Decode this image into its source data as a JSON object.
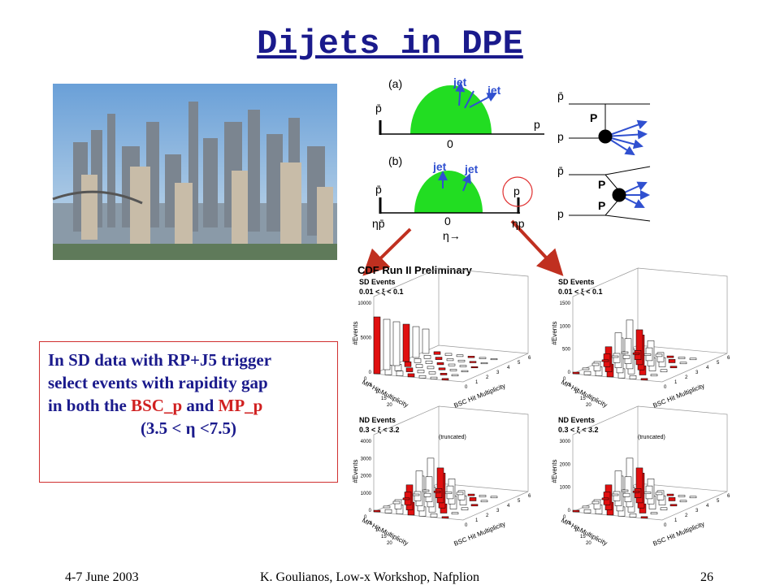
{
  "title": "Dijets in DPE",
  "text_box": {
    "lines": [
      [
        "In SD data with RP+J5 trigger"
      ],
      [
        "select events with rapidity gap"
      ],
      [
        "in both the ",
        "BSC_p",
        " and ",
        "MP_p"
      ],
      [
        "(3.5 < η <7.5)"
      ]
    ]
  },
  "diagram": {
    "a": {
      "label": "(a)",
      "jet1": "jet",
      "jet2": "jet",
      "pbar": "p̄",
      "p": "p",
      "zero": "0"
    },
    "b": {
      "label": "(b)",
      "jet1": "jet",
      "jet2": "jet",
      "pbar": "p̄",
      "p": "p",
      "zero": "0",
      "eta_pbar": "ηp̄",
      "eta": "η→",
      "eta_p": "ηp"
    },
    "feynman_a": {
      "pbar": "p̄",
      "p": "p",
      "pomeron": "P"
    },
    "feynman_b": {
      "pbar": "p̄",
      "p": "p",
      "pomeron1": "P",
      "pomeron2": "P"
    }
  },
  "plots_header": "CDF Run II Preliminary",
  "plots": [
    {
      "title": "SD Events",
      "cut": "0.01 < ξ < 0.1",
      "y_label": "#Events",
      "y_ticks": [
        "0",
        "5000",
        "10000"
      ],
      "x_ticks": [
        "0",
        "5",
        "10",
        "15",
        "20"
      ],
      "z_ticks": [
        "0",
        "1",
        "2",
        "3",
        "4",
        "5",
        "6"
      ],
      "x_label": "MP Hit Multiplicity",
      "z_label": "BSC Hit Multiplicity"
    },
    {
      "title": "SD Events",
      "cut": "0.01 < ξ < 0.1",
      "y_label": "#Events",
      "y_ticks": [
        "0",
        "500",
        "1000",
        "1500"
      ],
      "x_ticks": [
        "0",
        "5",
        "10",
        "15",
        "20"
      ],
      "z_ticks": [
        "0",
        "1",
        "2",
        "3",
        "4",
        "5",
        "6"
      ],
      "x_label": "MP Hit Multiplicity",
      "z_label": "BSC Hit Multiplicity"
    },
    {
      "title": "ND Events",
      "cut": "0.3 < ξ < 3.2",
      "note": "(truncated)",
      "y_label": "#Events",
      "y_ticks": [
        "0",
        "1000",
        "2000",
        "3000",
        "4000"
      ],
      "x_ticks": [
        "0",
        "5",
        "10",
        "15",
        "20"
      ],
      "z_ticks": [
        "0",
        "1",
        "2",
        "3",
        "4",
        "5",
        "6"
      ],
      "x_label": "MP Hit Multiplicity",
      "z_label": "BSC Hit Multiplicity"
    },
    {
      "title": "ND Events",
      "cut": "0.3 < ξ < 3.2",
      "note": "(truncated)",
      "y_label": "#Events",
      "y_ticks": [
        "0",
        "1000",
        "2000",
        "3000"
      ],
      "x_ticks": [
        "0",
        "5",
        "10",
        "15",
        "20"
      ],
      "z_ticks": [
        "0",
        "1",
        "2",
        "3",
        "4",
        "5",
        "6"
      ],
      "x_label": "MP Hit Multiplicity",
      "z_label": "BSC Hit Multiplicity"
    }
  ],
  "footer": {
    "date": "4-7 June 2003",
    "author": "K. Goulianos, Low-x Workshop, Nafplion",
    "page": "26"
  }
}
